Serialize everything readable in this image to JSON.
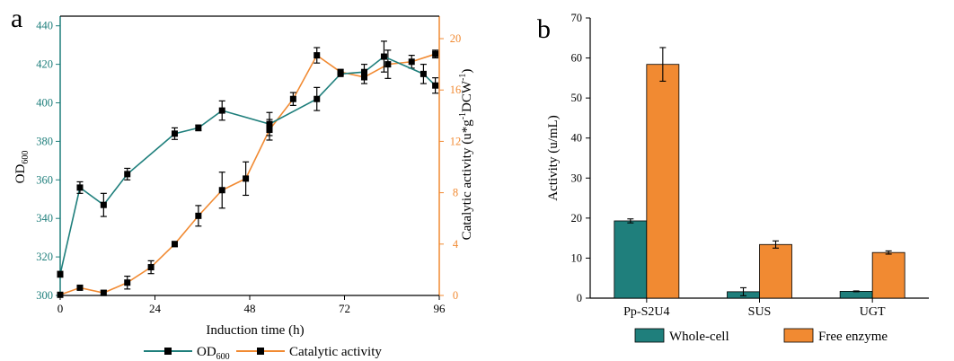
{
  "colors": {
    "teal": "#1f7f7c",
    "orange": "#f18a32",
    "axis_black": "#000000",
    "error_bar": "#000000"
  },
  "chart_data": [
    {
      "panel_label": "a",
      "type": "line",
      "xlabel": "Induction time (h)",
      "ylabel_left": "OD",
      "ylabel_left_sub": "600",
      "ylabel_right": "Catalytic activity (u*g",
      "ylabel_right_sup1": "-1",
      "ylabel_right_mid": "DCW",
      "ylabel_right_sup2": "-1",
      "ylabel_right_end": ")",
      "xlim": [
        0,
        96
      ],
      "xticks": [
        0,
        24,
        48,
        72,
        96
      ],
      "ylim_left": [
        300,
        445
      ],
      "yticks_left": [
        300,
        320,
        340,
        360,
        380,
        400,
        420,
        440
      ],
      "ylim_right": [
        0,
        21.75
      ],
      "yticks_right": [
        0,
        4,
        8,
        12,
        16,
        20
      ],
      "series": [
        {
          "name": "OD",
          "name_sub": "600",
          "axis": "left",
          "color": "#1f7f7c",
          "marker": "square",
          "x": [
            0,
            5,
            11,
            17,
            29,
            35,
            41,
            53,
            65,
            71,
            77,
            82,
            92,
            95
          ],
          "y": [
            311,
            356,
            347,
            363,
            384,
            387,
            396,
            389,
            402,
            415,
            416,
            424,
            415,
            409
          ],
          "err": [
            1.5,
            3,
            6,
            3,
            3,
            1.5,
            5,
            6,
            6,
            0.5,
            4,
            8,
            5,
            4
          ]
        },
        {
          "name": "Catalytic activity",
          "axis": "right",
          "color": "#f18a32",
          "marker": "square",
          "x": [
            0,
            5,
            11,
            17,
            23,
            29,
            35,
            41,
            47,
            53,
            59,
            65,
            71,
            77,
            83,
            89,
            95
          ],
          "y": [
            0.05,
            0.6,
            0.2,
            1.0,
            2.2,
            4.0,
            6.2,
            8.2,
            9.1,
            12.9,
            15.3,
            18.7,
            17.4,
            17.0,
            18.0,
            18.2,
            18.8
          ],
          "err": [
            0.1,
            0.15,
            0.2,
            0.5,
            0.5,
            0.2,
            0.8,
            1.4,
            1.3,
            0.8,
            0.5,
            0.6,
            0.2,
            0.5,
            1.1,
            0.5,
            0.3
          ]
        }
      ]
    },
    {
      "panel_label": "b",
      "type": "bar",
      "ylabel": "Activity (u/mL)",
      "categories": [
        "Pp-S2U4",
        "SUS",
        "UGT"
      ],
      "ylim": [
        0,
        70
      ],
      "yticks": [
        0,
        10,
        20,
        30,
        40,
        50,
        60,
        70
      ],
      "series": [
        {
          "name": "Whole-cell",
          "color": "#1f7f7c",
          "values": [
            19.3,
            1.6,
            1.7
          ],
          "err": [
            0.5,
            1.0,
            0.1
          ]
        },
        {
          "name": "Free enzyme",
          "color": "#f18a32",
          "values": [
            58.4,
            13.4,
            11.4
          ],
          "err": [
            4.2,
            0.9,
            0.4
          ]
        }
      ]
    }
  ]
}
